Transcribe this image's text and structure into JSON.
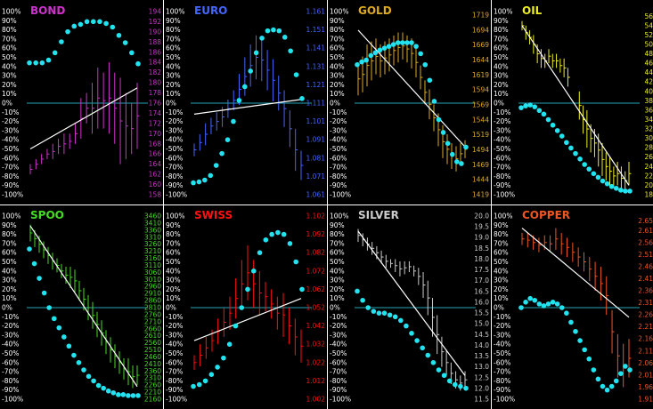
{
  "chart_data": [
    {
      "type": "bar",
      "title": "BOND",
      "title_color": "#cc33cc",
      "bar_color": "#cc33cc",
      "left_ticks": [
        "100%",
        "90%",
        "80%",
        "70%",
        "60%",
        "50%",
        "40%",
        "30%",
        "20%",
        "10%",
        "0%",
        "-10%",
        "-20%",
        "-30%",
        "-40%",
        "-50%",
        "-60%",
        "-70%",
        "-80%",
        "-90%",
        "-100%"
      ],
      "right_ticks": [
        "194",
        "192",
        "190",
        "188",
        "186",
        "184",
        "182",
        "180",
        "178",
        "176",
        "174",
        "172",
        "170",
        "168",
        "166",
        "164",
        "162",
        "160",
        "158"
      ],
      "ylim": [
        158,
        194
      ],
      "bars": [
        [
          162,
          164
        ],
        [
          163,
          165
        ],
        [
          164,
          166
        ],
        [
          165,
          167
        ],
        [
          165,
          168
        ],
        [
          166,
          169
        ],
        [
          166,
          170
        ],
        [
          167,
          170
        ],
        [
          168,
          172
        ],
        [
          169,
          177
        ],
        [
          172,
          178
        ],
        [
          170,
          180
        ],
        [
          171,
          183
        ],
        [
          171,
          182
        ],
        [
          170,
          184
        ],
        [
          168,
          182
        ],
        [
          164,
          181
        ],
        [
          165,
          178
        ],
        [
          166,
          176
        ],
        [
          167,
          180
        ]
      ],
      "trend": [
        [
          0,
          167.0
        ],
        [
          19,
          179.0
        ]
      ],
      "osc": [
        44,
        44,
        44,
        47,
        55,
        67,
        78,
        84,
        86,
        89,
        89,
        89,
        87,
        83,
        74,
        66,
        55,
        43
      ]
    },
    {
      "type": "bar",
      "title": "EURO",
      "title_color": "#4466ff",
      "bar_color": "#4466ff",
      "left_ticks": [
        "100%",
        "90%",
        "80%",
        "70%",
        "60%",
        "50%",
        "40%",
        "30%",
        "20%",
        "10%",
        "0%",
        "-10%",
        "-20%",
        "-30%",
        "-40%",
        "-50%",
        "-60%",
        "-70%",
        "-80%",
        "-90%",
        "-100%"
      ],
      "right_ticks": [
        "1.161",
        "1.151",
        "1.141",
        "1.131",
        "1.121",
        "1.111",
        "1.101",
        "1.091",
        "1.081",
        "1.071",
        "1.061"
      ],
      "ylim": [
        1.061,
        1.161
      ],
      "bars": [
        [
          1.082,
          1.089
        ],
        [
          1.085,
          1.094
        ],
        [
          1.088,
          1.1
        ],
        [
          1.094,
          1.103
        ],
        [
          1.096,
          1.106
        ],
        [
          1.098,
          1.109
        ],
        [
          1.103,
          1.113
        ],
        [
          1.107,
          1.118
        ],
        [
          1.11,
          1.127
        ],
        [
          1.115,
          1.136
        ],
        [
          1.12,
          1.143
        ],
        [
          1.124,
          1.148
        ],
        [
          1.123,
          1.146
        ],
        [
          1.118,
          1.14
        ],
        [
          1.112,
          1.135
        ],
        [
          1.107,
          1.126
        ],
        [
          1.098,
          1.118
        ],
        [
          1.087,
          1.107
        ],
        [
          1.074,
          1.097
        ],
        [
          1.069,
          1.085
        ]
      ],
      "trend": [
        [
          0,
          1.105
        ],
        [
          19,
          1.113
        ]
      ],
      "osc": [
        -87,
        -86,
        -84,
        -79,
        -68,
        -55,
        -40,
        -20,
        3,
        18,
        35,
        55,
        71,
        79,
        80,
        79,
        72,
        57,
        31,
        5
      ]
    },
    {
      "type": "bar",
      "title": "GOLD",
      "title_color": "#ddaa22",
      "bar_color": "#ddaa22",
      "left_ticks": [
        "100%",
        "90%",
        "80%",
        "70%",
        "60%",
        "50%",
        "40%",
        "30%",
        "20%",
        "10%",
        "0%",
        "-10%",
        "-20%",
        "-30%",
        "-40%",
        "-50%",
        "-60%",
        "-70%",
        "-80%",
        "-90%",
        "-100%"
      ],
      "right_ticks": [
        "1719",
        "1694",
        "1669",
        "1644",
        "1619",
        "1594",
        "1569",
        "1544",
        "1519",
        "1494",
        "1469",
        "1444",
        "1419"
      ],
      "ylim": [
        1419,
        1725
      ],
      "bars": [
        [
          1585,
          1640
        ],
        [
          1590,
          1650
        ],
        [
          1600,
          1670
        ],
        [
          1610,
          1675
        ],
        [
          1620,
          1680
        ],
        [
          1615,
          1670
        ],
        [
          1620,
          1675
        ],
        [
          1625,
          1680
        ],
        [
          1635,
          1685
        ],
        [
          1640,
          1690
        ],
        [
          1645,
          1690
        ],
        [
          1640,
          1685
        ],
        [
          1630,
          1680
        ],
        [
          1615,
          1665
        ],
        [
          1595,
          1635
        ],
        [
          1570,
          1610
        ],
        [
          1545,
          1595
        ],
        [
          1525,
          1570
        ],
        [
          1500,
          1555
        ],
        [
          1480,
          1535
        ],
        [
          1470,
          1520
        ],
        [
          1462,
          1505
        ],
        [
          1458,
          1500
        ],
        [
          1470,
          1505
        ],
        [
          1480,
          1510
        ]
      ],
      "trend": [
        [
          0,
          1694
        ],
        [
          24,
          1499
        ]
      ],
      "osc": [
        42,
        45,
        47,
        52,
        55,
        58,
        60,
        62,
        64,
        66,
        66,
        66,
        66,
        62,
        54,
        42,
        25,
        2,
        -18,
        -32,
        -44,
        -56,
        -64,
        -66,
        -48
      ]
    },
    {
      "type": "bar",
      "title": "OIL",
      "title_color": "#eeee22",
      "bar_color": "#eeee22",
      "left_ticks": [
        "100%",
        "90%",
        "80%",
        "70%",
        "60%",
        "50%",
        "40%",
        "30%",
        "20%",
        "10%",
        "0%",
        "-10%",
        "-20%",
        "-30%",
        "-40%",
        "-50%",
        "-60%",
        "-70%",
        "-80%",
        "-90%",
        "-100%"
      ],
      "right_ticks": [
        "56",
        "54",
        "52",
        "50",
        "48",
        "46",
        "44",
        "42",
        "40",
        "38",
        "36",
        "34",
        "32",
        "30",
        "28",
        "26",
        "24",
        "22",
        "20",
        "18"
      ],
      "ylim": [
        18,
        57
      ],
      "bars": [
        [
          53,
          55
        ],
        [
          51,
          54
        ],
        [
          50,
          53
        ],
        [
          48,
          52
        ],
        [
          46,
          50
        ],
        [
          45,
          49
        ],
        [
          45,
          48
        ],
        [
          46,
          49
        ],
        [
          45,
          48
        ],
        [
          45,
          48
        ],
        [
          44,
          47
        ],
        [
          43,
          47
        ],
        [
          41,
          45
        ],
        [
          null,
          null
        ],
        [
          null,
          null
        ],
        [
          34,
          40
        ],
        [
          31,
          37
        ],
        [
          28,
          36
        ],
        [
          27,
          33
        ],
        [
          26,
          32
        ],
        [
          24,
          31
        ],
        [
          22,
          29
        ],
        [
          21,
          27
        ],
        [
          20,
          26
        ],
        [
          20,
          24
        ],
        [
          20,
          25
        ],
        [
          19,
          24
        ],
        [
          19,
          23
        ],
        [
          20,
          25
        ]
      ],
      "trend": [
        [
          0,
          54.0
        ],
        [
          28,
          20.0
        ]
      ],
      "osc": [
        -5,
        -3,
        -2,
        -4,
        -8,
        -12,
        -18,
        -24,
        -30,
        -36,
        -43,
        -49,
        -55,
        -61,
        -67,
        -72,
        -77,
        -81,
        -85,
        -88,
        -91,
        -93,
        -95,
        -96,
        -96
      ]
    },
    {
      "type": "bar",
      "title": "SPOO",
      "title_color": "#44dd22",
      "bar_color": "#44dd22",
      "left_ticks": [
        "100%",
        "90%",
        "80%",
        "70%",
        "60%",
        "50%",
        "40%",
        "30%",
        "20%",
        "10%",
        "0%",
        "-10%",
        "-20%",
        "-30%",
        "-40%",
        "-50%",
        "-60%",
        "-70%",
        "-80%",
        "-90%",
        "-100%"
      ],
      "right_ticks": [
        "3460",
        "3410",
        "3360",
        "3310",
        "3260",
        "3210",
        "3160",
        "3110",
        "3060",
        "3010",
        "2960",
        "2910",
        "2860",
        "2810",
        "2760",
        "2710",
        "2660",
        "2610",
        "2560",
        "2510",
        "2460",
        "2410",
        "2360",
        "2310",
        "2260",
        "2210",
        "2160"
      ],
      "ylim": [
        2160,
        3460
      ],
      "bars": [
        [
          3280,
          3400
        ],
        [
          3240,
          3360
        ],
        [
          3200,
          3320
        ],
        [
          3160,
          3280
        ],
        [
          3120,
          3240
        ],
        [
          3080,
          3200
        ],
        [
          3060,
          3160
        ],
        [
          3020,
          3120
        ],
        [
          2980,
          3100
        ],
        [
          2950,
          3100
        ],
        [
          2920,
          3080
        ],
        [
          2860,
          3000
        ],
        [
          2790,
          2950
        ],
        [
          2720,
          2900
        ],
        [
          2660,
          2850
        ],
        [
          2600,
          2780
        ],
        [
          2540,
          2720
        ],
        [
          2480,
          2650
        ],
        [
          2420,
          2600
        ],
        [
          2380,
          2550
        ],
        [
          2340,
          2500
        ],
        [
          2300,
          2450
        ],
        [
          2260,
          2450
        ],
        [
          2240,
          2400
        ],
        [
          2260,
          2400
        ]
      ],
      "trend": [
        [
          0,
          3390
        ],
        [
          24,
          2250
        ]
      ],
      "osc": [
        64,
        48,
        32,
        16,
        0,
        -12,
        -22,
        -32,
        -42,
        -52,
        -60,
        -68,
        -75,
        -80,
        -85,
        -88,
        -91,
        -93,
        -95,
        -95,
        -96,
        -96,
        -96
      ]
    },
    {
      "type": "bar",
      "title": "SWISS",
      "title_color": "#ff1111",
      "bar_color": "#ff1111",
      "left_ticks": [
        "100%",
        "90%",
        "80%",
        "70%",
        "60%",
        "50%",
        "40%",
        "30%",
        "20%",
        "10%",
        "0%",
        "-10%",
        "-20%",
        "-30%",
        "-40%",
        "-50%",
        "-60%",
        "-70%",
        "-80%",
        "-90%",
        "-100%"
      ],
      "right_ticks": [
        "1.102",
        "1.092",
        "1.082",
        "1.072",
        "1.062",
        "1.052",
        "1.042",
        "1.032",
        "1.022",
        "1.012",
        "1.002"
      ],
      "ylim": [
        1.002,
        1.102
      ],
      "bars": [
        [
          1.018,
          1.026
        ],
        [
          1.02,
          1.032
        ],
        [
          1.024,
          1.036
        ],
        [
          1.028,
          1.04
        ],
        [
          1.032,
          1.046
        ],
        [
          1.036,
          1.052
        ],
        [
          1.04,
          1.058
        ],
        [
          1.046,
          1.068
        ],
        [
          1.052,
          1.078
        ],
        [
          1.056,
          1.086
        ],
        [
          1.052,
          1.078
        ],
        [
          1.048,
          1.072
        ],
        [
          1.05,
          1.066
        ],
        [
          1.046,
          1.062
        ],
        [
          1.04,
          1.058
        ],
        [
          1.036,
          1.06
        ],
        [
          1.032,
          1.052
        ],
        [
          1.026,
          1.046
        ],
        [
          1.022,
          1.04
        ]
      ],
      "trend": [
        [
          0,
          1.034
        ],
        [
          18,
          1.057
        ]
      ],
      "osc": [
        -86,
        -84,
        -80,
        -73,
        -65,
        -55,
        -40,
        -20,
        0,
        20,
        40,
        60,
        74,
        80,
        82,
        80,
        70,
        50,
        20
      ]
    },
    {
      "type": "bar",
      "title": "SILVER",
      "title_color": "#cccccc",
      "bar_color": "#cccccc",
      "left_ticks": [
        "100%",
        "90%",
        "80%",
        "70%",
        "60%",
        "50%",
        "40%",
        "30%",
        "20%",
        "10%",
        "0%",
        "-10%",
        "-20%",
        "-30%",
        "-40%",
        "-50%",
        "-60%",
        "-70%",
        "-80%",
        "-90%",
        "-100%"
      ],
      "right_ticks": [
        "20.0",
        "19.5",
        "19.0",
        "18.5",
        "18.0",
        "17.5",
        "17.0",
        "16.5",
        "16.0",
        "15.5",
        "15.0",
        "14.5",
        "14.0",
        "13.5",
        "13.0",
        "12.5",
        "12.0",
        "11.5"
      ],
      "ylim": [
        11.5,
        20.0
      ],
      "bars": [
        [
          18.8,
          19.4
        ],
        [
          18.6,
          19.2
        ],
        [
          18.4,
          19.0
        ],
        [
          18.2,
          18.8
        ],
        [
          18.0,
          18.6
        ],
        [
          17.8,
          18.4
        ],
        [
          17.6,
          18.2
        ],
        [
          17.6,
          18.0
        ],
        [
          17.4,
          18.0
        ],
        [
          17.2,
          17.9
        ],
        [
          17.3,
          17.9
        ],
        [
          17.4,
          17.9
        ],
        [
          17.2,
          17.7
        ],
        [
          16.8,
          17.6
        ],
        [
          16.2,
          17.4
        ],
        [
          15.4,
          17.0
        ],
        [
          14.4,
          16.2
        ],
        [
          13.6,
          15.4
        ],
        [
          13.0,
          14.4
        ],
        [
          12.6,
          13.8
        ],
        [
          12.2,
          13.2
        ],
        [
          12.0,
          12.8
        ],
        [
          11.9,
          12.6
        ],
        [
          12.0,
          12.8
        ]
      ],
      "trend": [
        [
          0,
          19.3
        ],
        [
          23,
          12.6
        ]
      ],
      "osc": [
        18,
        8,
        0,
        -4,
        -6,
        -6,
        -8,
        -10,
        -14,
        -20,
        -28,
        -36,
        -44,
        -52,
        -60,
        -68,
        -74,
        -80,
        -84,
        -86,
        -88
      ]
    },
    {
      "type": "bar",
      "title": "COPPER",
      "title_color": "#ee5522",
      "bar_color": "#ee5522",
      "left_ticks": [
        "100%",
        "90%",
        "80%",
        "70%",
        "60%",
        "50%",
        "40%",
        "30%",
        "20%",
        "10%",
        "0%",
        "-10%",
        "-20%",
        "-30%",
        "-40%",
        "-50%",
        "-60%",
        "-70%",
        "-80%",
        "-90%",
        "-100%"
      ],
      "right_ticks": [
        "2.65",
        "2.61",
        "2.56",
        "2.51",
        "2.46",
        "2.41",
        "2.36",
        "2.31",
        "2.26",
        "2.21",
        "2.16",
        "2.11",
        "2.06",
        "2.01",
        "1.96",
        "1.91"
      ],
      "ylim": [
        1.91,
        2.67
      ],
      "bars": [
        [
          2.55,
          2.6
        ],
        [
          2.54,
          2.6
        ],
        [
          2.53,
          2.59
        ],
        [
          2.52,
          2.58
        ],
        [
          2.53,
          2.59
        ],
        [
          2.52,
          2.59
        ],
        [
          2.53,
          2.62
        ],
        [
          2.51,
          2.6
        ],
        [
          2.5,
          2.58
        ],
        [
          2.48,
          2.56
        ],
        [
          2.46,
          2.54
        ],
        [
          2.44,
          2.52
        ],
        [
          2.4,
          2.5
        ],
        [
          2.36,
          2.48
        ],
        [
          2.32,
          2.46
        ],
        [
          2.26,
          2.42
        ],
        [
          2.1,
          2.28
        ],
        [
          2.0,
          2.18
        ],
        [
          1.96,
          2.14
        ],
        [
          2.0,
          2.16
        ]
      ],
      "trend": [
        [
          0,
          2.62
        ],
        [
          19,
          2.25
        ]
      ],
      "osc": [
        0,
        6,
        10,
        8,
        4,
        2,
        4,
        6,
        4,
        0,
        -6,
        -16,
        -26,
        -36,
        -46,
        -56,
        -68,
        -78,
        -86,
        -90,
        -86,
        -80,
        -72,
        -64,
        -68
      ]
    }
  ]
}
